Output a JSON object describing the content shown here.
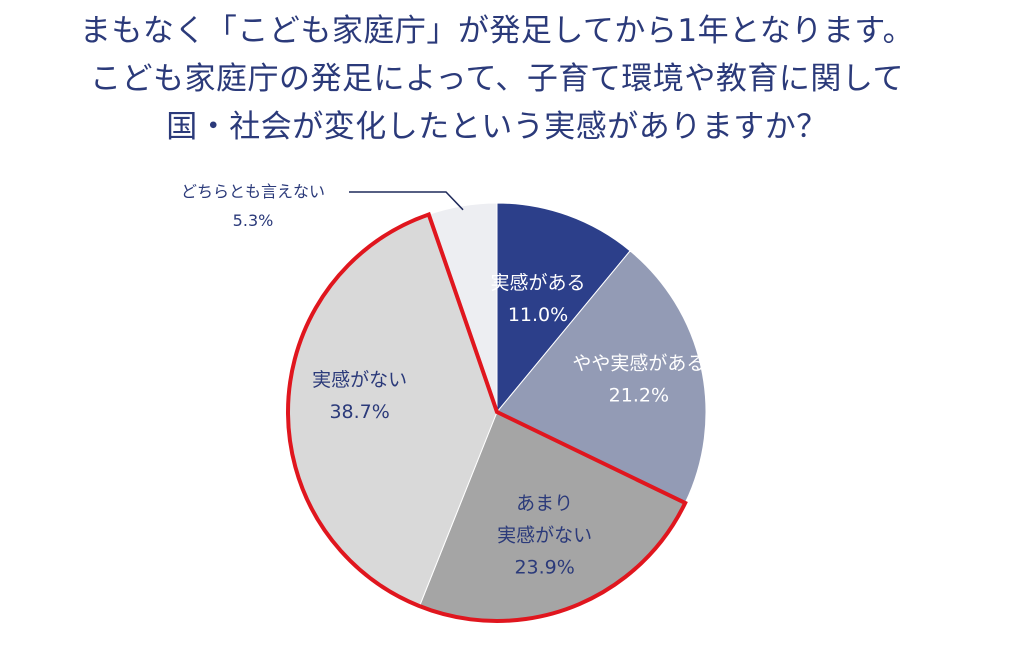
{
  "title_lines": [
    "まもなく「こども家庭庁」が発足してから1年となります。",
    "こども家庭庁の発足によって、子育て環境や教育に関して",
    "国・社会が変化したという実感がありますか？"
  ],
  "chart_data": {
    "type": "pie",
    "start_angle_deg": 0,
    "direction": "clockwise",
    "slices": [
      {
        "label_lines": [
          "実感がある"
        ],
        "value_text": "11.0%",
        "value": 11.0,
        "color": "#2c3f8a",
        "text_color": "#ffffff"
      },
      {
        "label_lines": [
          "やや実感がある"
        ],
        "value_text": "21.2%",
        "value": 21.2,
        "color": "#939bb5",
        "text_color": "#ffffff"
      },
      {
        "label_lines": [
          "あまり",
          "実感がない"
        ],
        "value_text": "23.9%",
        "value": 23.9,
        "color": "#a5a5a5",
        "text_color": "#2b3a7a"
      },
      {
        "label_lines": [
          "実感がない"
        ],
        "value_text": "38.7%",
        "value": 38.7,
        "color": "#d9d9d9",
        "text_color": "#2b3a7a"
      },
      {
        "label_lines": [
          "どちらとも言えない"
        ],
        "value_text": "5.3%",
        "value": 5.3,
        "color": "#edeef2",
        "text_color": "#2b3a7a",
        "callout": true
      }
    ],
    "highlight": {
      "slices": [
        2,
        3
      ],
      "color": "#e0161e"
    }
  }
}
